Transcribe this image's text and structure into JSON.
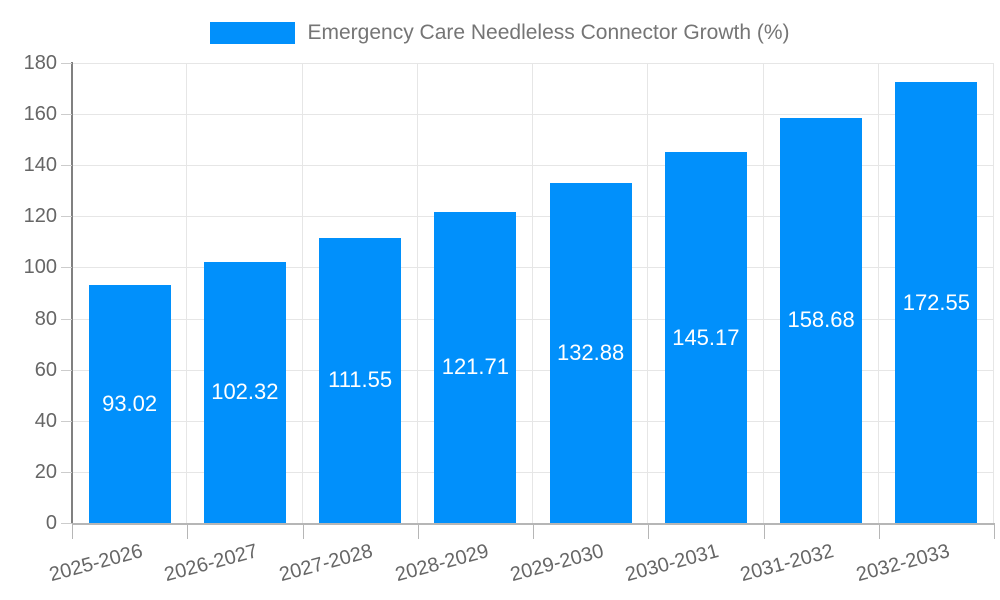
{
  "chart_data": {
    "type": "bar",
    "title": "Emergency Care Needleless Connector Growth (%)",
    "categories": [
      "2025-2026",
      "2026-2027",
      "2027-2028",
      "2028-2029",
      "2029-2030",
      "2030-2031",
      "2031-2032",
      "2032-2033"
    ],
    "values": [
      93.02,
      102.32,
      111.55,
      121.71,
      132.88,
      145.17,
      158.68,
      172.55
    ],
    "value_labels": [
      "93.02",
      "102.32",
      "111.55",
      "121.71",
      "132.88",
      "145.17",
      "158.68",
      "172.55"
    ],
    "xlabel": "",
    "ylabel": "",
    "ylim": [
      0,
      180
    ],
    "yticks": [
      0,
      20,
      40,
      60,
      80,
      100,
      120,
      140,
      160,
      180
    ],
    "grid": true,
    "legend_position": "top-center",
    "bar_width_ratio": 0.71,
    "x_label_rotation_deg": -15
  },
  "colors": {
    "bar": "#0190fb",
    "value_text": "#ffffff",
    "grid": "#e6e6e6",
    "axis_text": "#666666",
    "legend_text": "#757575",
    "y_axis_line": "#808080",
    "x_axis_line": "#b6b6b6",
    "background": "#ffffff"
  }
}
